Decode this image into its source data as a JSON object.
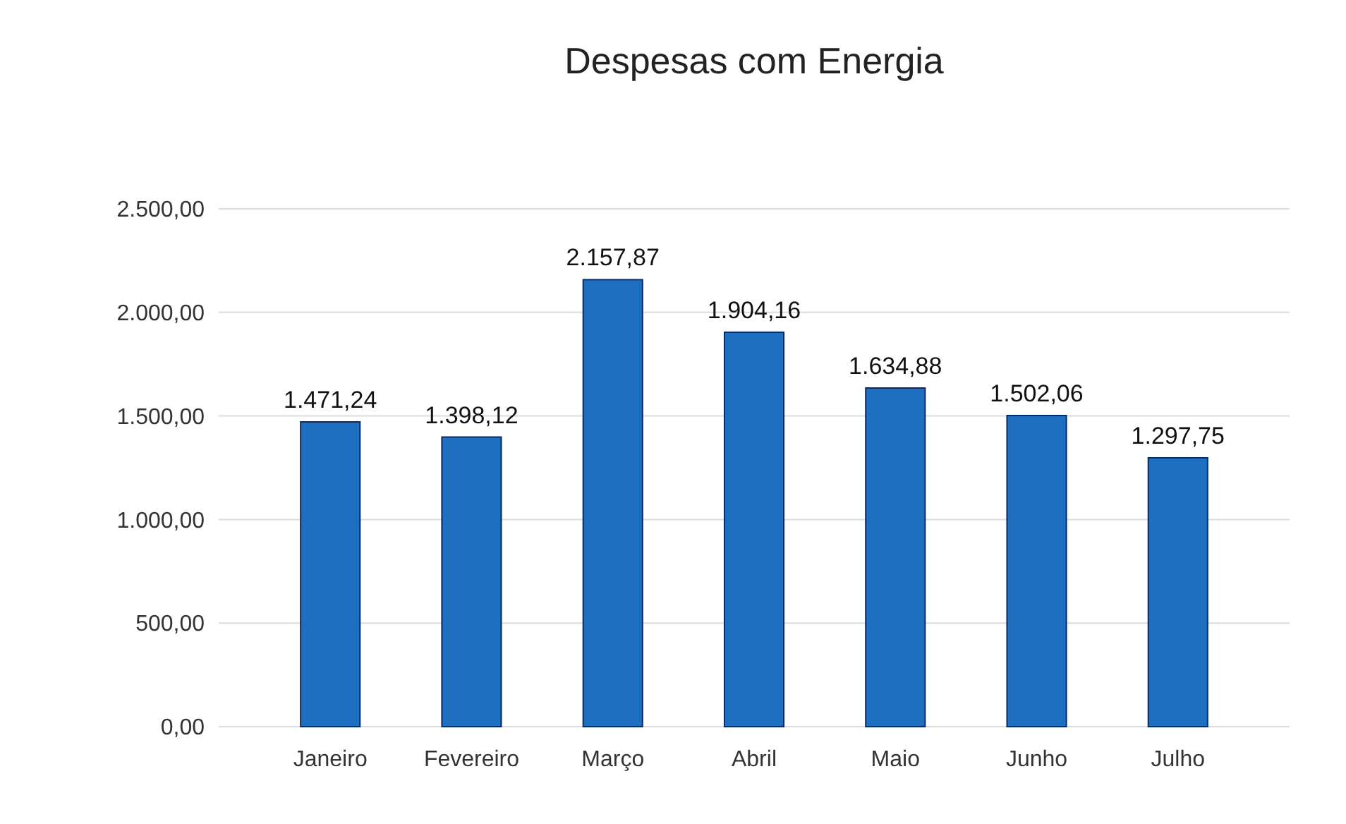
{
  "chart_data": {
    "type": "bar",
    "title": "Despesas com Energia",
    "categories": [
      "Janeiro",
      "Fevereiro",
      "Março",
      "Abril",
      "Maio",
      "Junho",
      "Julho"
    ],
    "values": [
      1471.24,
      1398.12,
      2157.87,
      1904.16,
      1634.88,
      1502.06,
      1297.75
    ],
    "value_labels": [
      "1.471,24",
      "1.398,12",
      "2.157,87",
      "1.904,16",
      "1.634,88",
      "1.502,06",
      "1.297,75"
    ],
    "color": "#1f6fc0",
    "ylim": [
      0,
      2500
    ],
    "yticks": [
      {
        "value": 0,
        "label": "0,00"
      },
      {
        "value": 500,
        "label": "500,00"
      },
      {
        "value": 1000,
        "label": "1.000,00"
      },
      {
        "value": 1500,
        "label": "1.500,00"
      },
      {
        "value": 2000,
        "label": "2.000,00"
      },
      {
        "value": 2500,
        "label": "2.500,00"
      }
    ],
    "grid": "y"
  }
}
